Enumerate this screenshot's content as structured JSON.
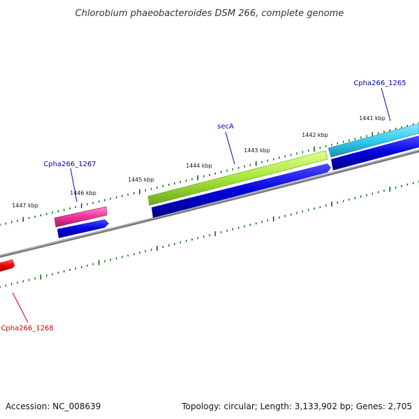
{
  "title": "Chlorobium phaeobacteroides DSM 266, complete genome",
  "footer": {
    "accession": "Accession: NC_008639",
    "summary": "Topology: circular; Length: 3,133,902 bp; Genes: 2,705"
  },
  "ticks": [
    "1441 kbp",
    "1442 kbp",
    "1443 kbp",
    "1444 kbp",
    "1445 kbp",
    "1446 kbp",
    "1447 kbp"
  ],
  "genes": [
    {
      "name": "Cpha266_1265",
      "color": "#0000aa"
    },
    {
      "name": "secA",
      "color": "#0000aa"
    },
    {
      "name": "Cpha266_1267",
      "color": "#0000aa"
    },
    {
      "name": "Cpha266_1268",
      "color": "#cc0000"
    }
  ],
  "colors": {
    "forward_gene_1265": "#33ccee",
    "forward_gene_secA": "#99dd33",
    "forward_gene_1267": "#ee3399",
    "cds_blue": "#0000dd",
    "reverse_gene_red": "#dd0000",
    "tick_green": "#006600",
    "backbone": "#888888"
  }
}
